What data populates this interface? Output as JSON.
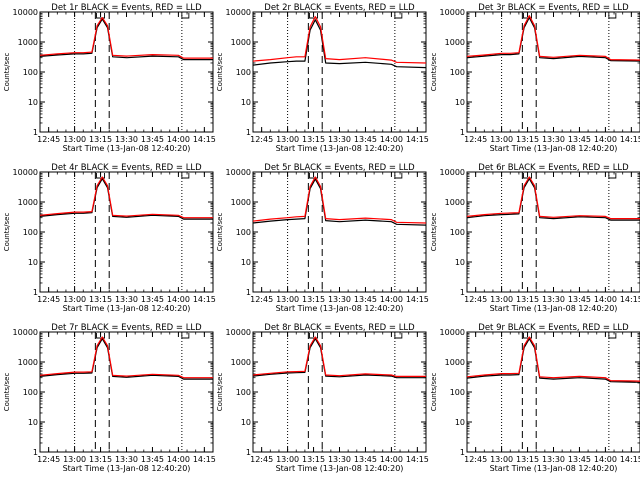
{
  "figure": {
    "xlabel": "Start Time (13-Jan-08 12:40:20)",
    "ylabel": "Counts/sec",
    "x_ticks": [
      "12:45",
      "13:00",
      "13:15",
      "13:30",
      "13:45",
      "14:00",
      "14:15"
    ],
    "y_ticks": [
      "1",
      "10",
      "100",
      "1000",
      "10000"
    ]
  },
  "colors": {
    "events": "#000000",
    "lld": "#ff0000",
    "axes": "#000000",
    "background": "#ffffff"
  },
  "chart_data": [
    {
      "type": "line",
      "title": "Det 1r BLACK = Events, RED = LLD",
      "xlabel": "Start Time (13-Jan-08 12:40:20)",
      "ylabel": "Counts/sec",
      "x_ticks": [
        "12:45",
        "13:00",
        "13:15",
        "13:30",
        "13:45",
        "14:00",
        "14:15"
      ],
      "xlim": [
        "12:40",
        "14:20"
      ],
      "yscale": "log",
      "ylim": [
        1,
        10000
      ],
      "vertical_lines_dotted": [
        "13:00",
        "14:02"
      ],
      "vertical_lines_dashed": [
        "13:12",
        "13:20"
      ],
      "markers_on_top": [
        "13:15",
        "14:02"
      ],
      "series": [
        {
          "name": "BLACK = Events",
          "x": [
            "12:40",
            "12:50",
            "13:00",
            "13:05",
            "13:10",
            "13:13",
            "13:16",
            "13:19",
            "13:22",
            "13:30",
            "13:45",
            "14:00",
            "14:03",
            "14:20"
          ],
          "values": [
            330,
            370,
            400,
            400,
            420,
            3000,
            5800,
            3000,
            320,
            300,
            340,
            320,
            260,
            260
          ]
        },
        {
          "name": "RED = LLD",
          "x": [
            "12:40",
            "12:50",
            "13:00",
            "13:05",
            "13:10",
            "13:13",
            "13:16",
            "13:19",
            "13:22",
            "13:30",
            "13:45",
            "14:00",
            "14:03",
            "14:20"
          ],
          "values": [
            360,
            400,
            440,
            440,
            460,
            3500,
            6500,
            3500,
            360,
            340,
            380,
            360,
            290,
            290
          ]
        }
      ]
    },
    {
      "type": "line",
      "title": "Det 2r BLACK = Events, RED = LLD",
      "xlabel": "Start Time (13-Jan-08 12:40:20)",
      "ylabel": "Counts/sec",
      "x_ticks": [
        "12:45",
        "13:00",
        "13:15",
        "13:30",
        "13:45",
        "14:00",
        "14:15"
      ],
      "xlim": [
        "12:40",
        "14:20"
      ],
      "yscale": "log",
      "ylim": [
        1,
        10000
      ],
      "vertical_lines_dotted": [
        "13:00",
        "14:02"
      ],
      "vertical_lines_dashed": [
        "13:12",
        "13:20"
      ],
      "markers_on_top": [
        "13:15",
        "14:02"
      ],
      "series": [
        {
          "name": "BLACK = Events",
          "x": [
            "12:40",
            "12:50",
            "13:00",
            "13:05",
            "13:10",
            "13:13",
            "13:16",
            "13:19",
            "13:22",
            "13:30",
            "13:45",
            "14:00",
            "14:03",
            "14:20"
          ],
          "values": [
            170,
            200,
            220,
            230,
            230,
            2500,
            5500,
            2500,
            200,
            190,
            210,
            180,
            150,
            140
          ]
        },
        {
          "name": "RED = LLD",
          "x": [
            "12:40",
            "12:50",
            "13:00",
            "13:05",
            "13:10",
            "13:13",
            "13:16",
            "13:19",
            "13:22",
            "13:30",
            "13:45",
            "14:00",
            "14:03",
            "14:20"
          ],
          "values": [
            230,
            260,
            300,
            320,
            320,
            3200,
            7000,
            3200,
            280,
            260,
            300,
            250,
            210,
            200
          ]
        }
      ]
    },
    {
      "type": "line",
      "title": "Det 3r BLACK = Events, RED = LLD",
      "xlabel": "Start Time (13-Jan-08 12:40:20)",
      "ylabel": "Counts/sec",
      "x_ticks": [
        "12:45",
        "13:00",
        "13:15",
        "13:30",
        "13:45",
        "14:00",
        "14:15"
      ],
      "xlim": [
        "12:40",
        "14:20"
      ],
      "yscale": "log",
      "ylim": [
        1,
        10000
      ],
      "vertical_lines_dotted": [
        "13:00",
        "14:02"
      ],
      "vertical_lines_dashed": [
        "13:12",
        "13:20"
      ],
      "markers_on_top": [
        "13:15",
        "14:02"
      ],
      "series": [
        {
          "name": "BLACK = Events",
          "x": [
            "12:40",
            "12:50",
            "13:00",
            "13:05",
            "13:10",
            "13:13",
            "13:16",
            "13:19",
            "13:22",
            "13:30",
            "13:45",
            "14:00",
            "14:03",
            "14:20"
          ],
          "values": [
            300,
            340,
            380,
            380,
            400,
            3000,
            6500,
            3000,
            300,
            280,
            330,
            300,
            240,
            230
          ]
        },
        {
          "name": "RED = LLD",
          "x": [
            "12:40",
            "12:50",
            "13:00",
            "13:05",
            "13:10",
            "13:13",
            "13:16",
            "13:19",
            "13:22",
            "13:30",
            "13:45",
            "14:00",
            "14:03",
            "14:20"
          ],
          "values": [
            330,
            370,
            420,
            420,
            440,
            3500,
            7500,
            3500,
            330,
            310,
            360,
            330,
            260,
            250
          ]
        }
      ]
    },
    {
      "type": "line",
      "title": "Det 4r BLACK = Events, RED = LLD",
      "xlabel": "Start Time (13-Jan-08 12:40:20)",
      "ylabel": "Counts/sec",
      "x_ticks": [
        "12:45",
        "13:00",
        "13:15",
        "13:30",
        "13:45",
        "14:00",
        "14:15"
      ],
      "xlim": [
        "12:40",
        "14:20"
      ],
      "yscale": "log",
      "ylim": [
        1,
        10000
      ],
      "vertical_lines_dotted": [
        "13:00",
        "14:02"
      ],
      "vertical_lines_dashed": [
        "13:12",
        "13:20"
      ],
      "markers_on_top": [
        "13:15",
        "14:02"
      ],
      "series": [
        {
          "name": "BLACK = Events",
          "x": [
            "12:40",
            "12:50",
            "13:00",
            "13:05",
            "13:10",
            "13:13",
            "13:16",
            "13:19",
            "13:22",
            "13:30",
            "13:45",
            "14:00",
            "14:03",
            "14:20"
          ],
          "values": [
            330,
            380,
            420,
            420,
            440,
            3000,
            6000,
            3000,
            330,
            310,
            360,
            330,
            270,
            270
          ]
        },
        {
          "name": "RED = LLD",
          "x": [
            "12:40",
            "12:50",
            "13:00",
            "13:05",
            "13:10",
            "13:13",
            "13:16",
            "13:19",
            "13:22",
            "13:30",
            "13:45",
            "14:00",
            "14:03",
            "14:20"
          ],
          "values": [
            360,
            410,
            460,
            460,
            480,
            3500,
            6800,
            3500,
            360,
            340,
            390,
            360,
            300,
            300
          ]
        }
      ]
    },
    {
      "type": "line",
      "title": "Det 5r BLACK = Events, RED = LLD",
      "xlabel": "Start Time (13-Jan-08 12:40:20)",
      "ylabel": "Counts/sec",
      "x_ticks": [
        "12:45",
        "13:00",
        "13:15",
        "13:30",
        "13:45",
        "14:00",
        "14:15"
      ],
      "xlim": [
        "12:40",
        "14:20"
      ],
      "yscale": "log",
      "ylim": [
        1,
        10000
      ],
      "vertical_lines_dotted": [
        "13:00",
        "14:02"
      ],
      "vertical_lines_dashed": [
        "13:12",
        "13:20"
      ],
      "markers_on_top": [
        "13:15",
        "14:02"
      ],
      "series": [
        {
          "name": "BLACK = Events",
          "x": [
            "12:40",
            "12:50",
            "13:00",
            "13:05",
            "13:10",
            "13:13",
            "13:16",
            "13:19",
            "13:22",
            "13:30",
            "13:45",
            "14:00",
            "14:03",
            "14:20"
          ],
          "values": [
            200,
            230,
            260,
            270,
            280,
            2800,
            5800,
            2800,
            240,
            220,
            250,
            220,
            180,
            170
          ]
        },
        {
          "name": "RED = LLD",
          "x": [
            "12:40",
            "12:50",
            "13:00",
            "13:05",
            "13:10",
            "13:13",
            "13:16",
            "13:19",
            "13:22",
            "13:30",
            "13:45",
            "14:00",
            "14:03",
            "14:20"
          ],
          "values": [
            230,
            270,
            300,
            320,
            330,
            3300,
            6800,
            3300,
            280,
            260,
            290,
            260,
            210,
            200
          ]
        }
      ]
    },
    {
      "type": "line",
      "title": "Det 6r BLACK = Events, RED = LLD",
      "xlabel": "Start Time (13-Jan-08 12:40:20)",
      "ylabel": "Counts/sec",
      "x_ticks": [
        "12:45",
        "13:00",
        "13:15",
        "13:30",
        "13:45",
        "14:00",
        "14:15"
      ],
      "xlim": [
        "12:40",
        "14:20"
      ],
      "yscale": "log",
      "ylim": [
        1,
        10000
      ],
      "vertical_lines_dotted": [
        "13:00",
        "14:02"
      ],
      "vertical_lines_dashed": [
        "13:12",
        "13:20"
      ],
      "markers_on_top": [
        "13:15",
        "14:02"
      ],
      "series": [
        {
          "name": "BLACK = Events",
          "x": [
            "12:40",
            "12:50",
            "13:00",
            "13:05",
            "13:10",
            "13:13",
            "13:16",
            "13:19",
            "13:22",
            "13:30",
            "13:45",
            "14:00",
            "14:03",
            "14:20"
          ],
          "values": [
            300,
            350,
            380,
            390,
            400,
            3000,
            6000,
            3000,
            300,
            280,
            320,
            300,
            250,
            250
          ]
        },
        {
          "name": "RED = LLD",
          "x": [
            "12:40",
            "12:50",
            "13:00",
            "13:05",
            "13:10",
            "13:13",
            "13:16",
            "13:19",
            "13:22",
            "13:30",
            "13:45",
            "14:00",
            "14:03",
            "14:20"
          ],
          "values": [
            330,
            380,
            420,
            430,
            440,
            3500,
            6800,
            3500,
            330,
            310,
            350,
            330,
            280,
            280
          ]
        }
      ]
    },
    {
      "type": "line",
      "title": "Det 7r BLACK = Events, RED = LLD",
      "xlabel": "Start Time (13-Jan-08 12:40:20)",
      "ylabel": "Counts/sec",
      "x_ticks": [
        "12:45",
        "13:00",
        "13:15",
        "13:30",
        "13:45",
        "14:00",
        "14:15"
      ],
      "xlim": [
        "12:40",
        "14:20"
      ],
      "yscale": "log",
      "ylim": [
        1,
        10000
      ],
      "vertical_lines_dotted": [
        "13:00",
        "14:02"
      ],
      "vertical_lines_dashed": [
        "13:12",
        "13:20"
      ],
      "markers_on_top": [
        "13:15",
        "14:02"
      ],
      "series": [
        {
          "name": "BLACK = Events",
          "x": [
            "12:40",
            "12:50",
            "13:00",
            "13:05",
            "13:10",
            "13:13",
            "13:16",
            "13:19",
            "13:22",
            "13:30",
            "13:45",
            "14:00",
            "14:03",
            "14:20"
          ],
          "values": [
            330,
            380,
            420,
            420,
            430,
            3000,
            6000,
            3000,
            330,
            310,
            360,
            330,
            270,
            270
          ]
        },
        {
          "name": "RED = LLD",
          "x": [
            "12:40",
            "12:50",
            "13:00",
            "13:05",
            "13:10",
            "13:13",
            "13:16",
            "13:19",
            "13:22",
            "13:30",
            "13:45",
            "14:00",
            "14:03",
            "14:20"
          ],
          "values": [
            360,
            410,
            460,
            460,
            470,
            3500,
            6800,
            3500,
            360,
            340,
            390,
            360,
            300,
            300
          ]
        }
      ]
    },
    {
      "type": "line",
      "title": "Det 8r BLACK = Events, RED = LLD",
      "xlabel": "Start Time (13-Jan-08 12:40:20)",
      "ylabel": "Counts/sec",
      "x_ticks": [
        "12:45",
        "13:00",
        "13:15",
        "13:30",
        "13:45",
        "14:00",
        "14:15"
      ],
      "xlim": [
        "12:40",
        "14:20"
      ],
      "yscale": "log",
      "ylim": [
        1,
        10000
      ],
      "vertical_lines_dotted": [
        "13:00",
        "14:02"
      ],
      "vertical_lines_dashed": [
        "13:12",
        "13:20"
      ],
      "markers_on_top": [
        "13:15",
        "14:02"
      ],
      "series": [
        {
          "name": "BLACK = Events",
          "x": [
            "12:40",
            "12:50",
            "13:00",
            "13:05",
            "13:10",
            "13:13",
            "13:16",
            "13:19",
            "13:22",
            "13:30",
            "13:45",
            "14:00",
            "14:03",
            "14:20"
          ],
          "values": [
            340,
            390,
            430,
            440,
            450,
            3000,
            6000,
            3000,
            340,
            320,
            370,
            340,
            300,
            300
          ]
        },
        {
          "name": "RED = LLD",
          "x": [
            "12:40",
            "12:50",
            "13:00",
            "13:05",
            "13:10",
            "13:13",
            "13:16",
            "13:19",
            "13:22",
            "13:30",
            "13:45",
            "14:00",
            "14:03",
            "14:20"
          ],
          "values": [
            370,
            420,
            470,
            480,
            490,
            3500,
            6800,
            3500,
            370,
            350,
            400,
            370,
            330,
            330
          ]
        }
      ]
    },
    {
      "type": "line",
      "title": "Det 9r BLACK = Events, RED = LLD",
      "xlabel": "Start Time (13-Jan-08 12:40:20)",
      "ylabel": "Counts/sec",
      "x_ticks": [
        "12:45",
        "13:00",
        "13:15",
        "13:30",
        "13:45",
        "14:00",
        "14:15"
      ],
      "xlim": [
        "12:40",
        "14:20"
      ],
      "yscale": "log",
      "ylim": [
        1,
        10000
      ],
      "vertical_lines_dotted": [
        "13:00",
        "14:02"
      ],
      "vertical_lines_dashed": [
        "13:12",
        "13:20"
      ],
      "markers_on_top": [
        "13:15",
        "14:02"
      ],
      "series": [
        {
          "name": "BLACK = Events",
          "x": [
            "12:40",
            "12:50",
            "13:00",
            "13:05",
            "13:10",
            "13:13",
            "13:16",
            "13:19",
            "13:22",
            "13:30",
            "13:45",
            "14:00",
            "14:03",
            "14:20"
          ],
          "values": [
            290,
            340,
            370,
            370,
            380,
            3000,
            6000,
            3000,
            290,
            270,
            300,
            270,
            220,
            210
          ]
        },
        {
          "name": "RED = LLD",
          "x": [
            "12:40",
            "12:50",
            "13:00",
            "13:05",
            "13:10",
            "13:13",
            "13:16",
            "13:19",
            "13:22",
            "13:30",
            "13:45",
            "14:00",
            "14:03",
            "14:20"
          ],
          "values": [
            320,
            370,
            410,
            410,
            420,
            3500,
            6800,
            3500,
            320,
            300,
            330,
            300,
            240,
            230
          ]
        }
      ]
    }
  ]
}
